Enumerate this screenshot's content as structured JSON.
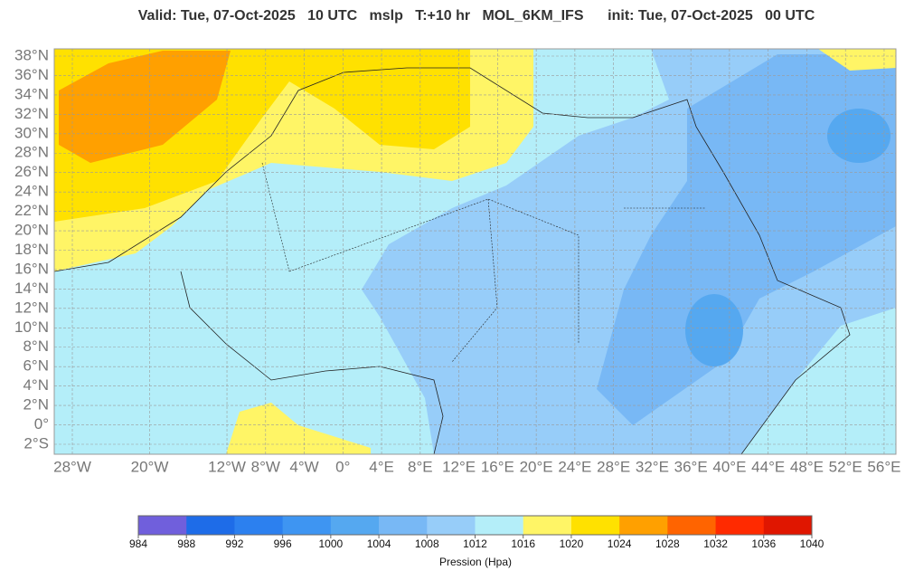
{
  "title": "Valid: Tue, 07-Oct-2025   10 UTC   mslp   T:+10 hr   MOL_6KM_IFS      init: Tue, 07-Oct-2025   00 UTC",
  "map": {
    "lat_ticks": [
      {
        "value": 38,
        "label": "38°N"
      },
      {
        "value": 36,
        "label": "36°N"
      },
      {
        "value": 34,
        "label": "34°N"
      },
      {
        "value": 32,
        "label": "32°N"
      },
      {
        "value": 30,
        "label": "30°N"
      },
      {
        "value": 28,
        "label": "28°N"
      },
      {
        "value": 26,
        "label": "26°N"
      },
      {
        "value": 24,
        "label": "24°N"
      },
      {
        "value": 22,
        "label": "22°N"
      },
      {
        "value": 20,
        "label": "20°N"
      },
      {
        "value": 18,
        "label": "18°N"
      },
      {
        "value": 16,
        "label": "16°N"
      },
      {
        "value": 14,
        "label": "14°N"
      },
      {
        "value": 12,
        "label": "12°N"
      },
      {
        "value": 10,
        "label": "10°N"
      },
      {
        "value": 8,
        "label": "8°N"
      },
      {
        "value": 6,
        "label": "6°N"
      },
      {
        "value": 4,
        "label": "4°N"
      },
      {
        "value": 2,
        "label": "2°N"
      },
      {
        "value": 0,
        "label": "0°"
      },
      {
        "value": -2,
        "label": "2°S"
      }
    ],
    "lon_ticks": [
      {
        "value": -28,
        "label": "28°W"
      },
      {
        "value": -20,
        "label": "20°W"
      },
      {
        "value": -12,
        "label": "12°W"
      },
      {
        "value": -8,
        "label": "8°W"
      },
      {
        "value": -4,
        "label": "4°W"
      },
      {
        "value": 0,
        "label": "0°"
      },
      {
        "value": 4,
        "label": "4°E"
      },
      {
        "value": 8,
        "label": "8°E"
      },
      {
        "value": 12,
        "label": "12°E"
      },
      {
        "value": 16,
        "label": "16°E"
      },
      {
        "value": 20,
        "label": "20°E"
      },
      {
        "value": 24,
        "label": "24°E"
      },
      {
        "value": 28,
        "label": "28°E"
      },
      {
        "value": 32,
        "label": "32°E"
      },
      {
        "value": 36,
        "label": "36°E"
      },
      {
        "value": 40,
        "label": "40°E"
      },
      {
        "value": 44,
        "label": "44°E"
      },
      {
        "value": 48,
        "label": "48°E"
      },
      {
        "value": 52,
        "label": "52°E"
      },
      {
        "value": 56,
        "label": "56°E"
      }
    ]
  },
  "colorbar": {
    "ticks": [
      984,
      988,
      992,
      996,
      1000,
      1004,
      1008,
      1012,
      1016,
      1020,
      1024,
      1028,
      1032,
      1036,
      1040
    ],
    "colors": [
      "#705fdc",
      "#1e6ce8",
      "#2c80ef",
      "#3e95f2",
      "#55a8f0",
      "#78b8f5",
      "#97cdf9",
      "#b4eef9",
      "#fff566",
      "#ffe100",
      "#ffa000",
      "#ff6400",
      "#ff2a00",
      "#e01600"
    ],
    "label": "Pression (Hpa)"
  }
}
